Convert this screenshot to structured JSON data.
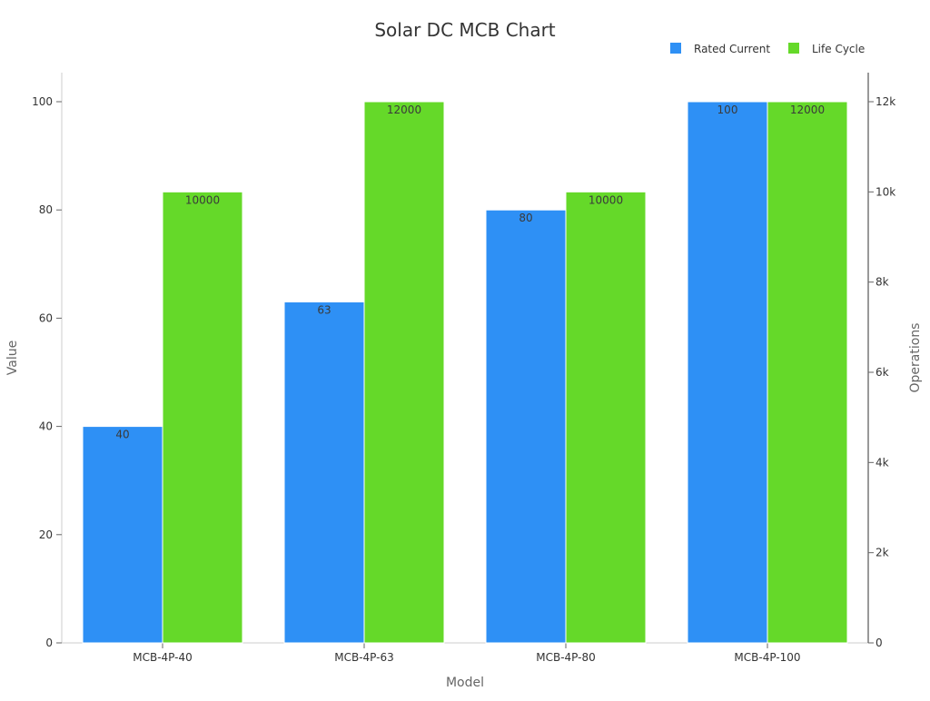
{
  "chart_data": {
    "type": "bar",
    "title": "Solar DC MCB Chart",
    "xlabel": "Model",
    "ylabel": "Value",
    "y2label": "Operations",
    "categories": [
      "MCB-4P-40",
      "MCB-4P-63",
      "MCB-4P-80",
      "MCB-4P-100"
    ],
    "series": [
      {
        "name": "Rated Current",
        "values": [
          40,
          63,
          80,
          100
        ],
        "axis": "left",
        "color": "#2e90f5"
      },
      {
        "name": "Life Cycle",
        "values": [
          10000,
          12000,
          10000,
          12000
        ],
        "axis": "right",
        "color": "#65d929"
      }
    ],
    "ylim": [
      0,
      100
    ],
    "y2lim": [
      0,
      12000
    ],
    "yticks": [
      "0",
      "20",
      "40",
      "60",
      "80",
      "100"
    ],
    "y2ticks": [
      "0",
      "2k",
      "4k",
      "6k",
      "8k",
      "10k",
      "12k"
    ],
    "legend_position": "top-right",
    "grid": false
  }
}
